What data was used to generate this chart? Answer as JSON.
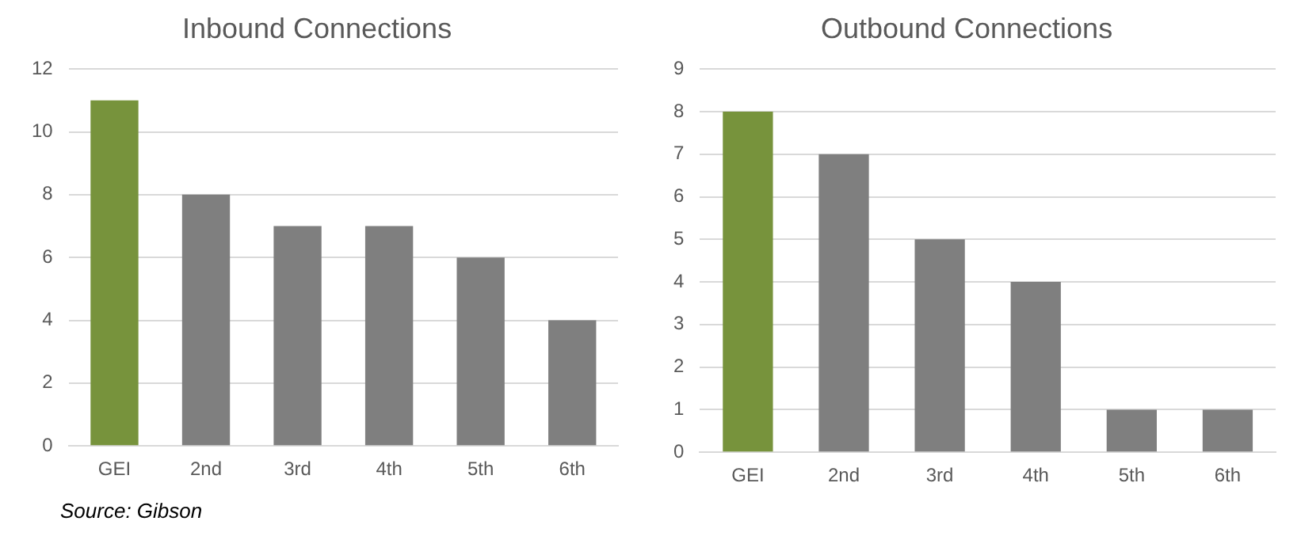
{
  "chart_data": [
    {
      "type": "bar",
      "title": "Inbound Connections",
      "categories": [
        "GEI",
        "2nd",
        "3rd",
        "4th",
        "5th",
        "6th"
      ],
      "values": [
        11,
        8,
        7,
        7,
        6,
        4
      ],
      "colors": [
        "#77933c",
        "#7f7f7f",
        "#7f7f7f",
        "#7f7f7f",
        "#7f7f7f",
        "#7f7f7f"
      ],
      "ylim": [
        0,
        12
      ],
      "yticks": [
        0,
        2,
        4,
        6,
        8,
        10,
        12
      ],
      "grid": "y",
      "legend": false,
      "annotations": [
        "Source: Gibson"
      ]
    },
    {
      "type": "bar",
      "title": "Outbound Connections",
      "categories": [
        "GEI",
        "2nd",
        "3rd",
        "4th",
        "5th",
        "6th"
      ],
      "values": [
        8,
        7,
        5,
        4,
        1,
        1
      ],
      "colors": [
        "#77933c",
        "#7f7f7f",
        "#7f7f7f",
        "#7f7f7f",
        "#7f7f7f",
        "#7f7f7f"
      ],
      "ylim": [
        0,
        9
      ],
      "yticks": [
        0,
        1,
        2,
        3,
        4,
        5,
        6,
        7,
        8,
        9
      ],
      "grid": "y",
      "legend": false
    }
  ]
}
